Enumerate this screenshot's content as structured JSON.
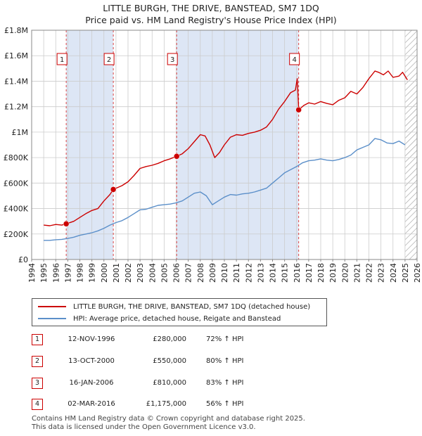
{
  "title": "LITTLE BURGH, THE DRIVE, BANSTEAD, SM7 1DQ",
  "subtitle": "Price paid vs. HM Land Registry's House Price Index (HPI)",
  "colors": {
    "property_line": "#cc0000",
    "hpi_line": "#5b8fc9",
    "shade": "#dde6f5",
    "vline": "#dd4444",
    "grid": "#cccccc"
  },
  "chart_data": {
    "type": "line",
    "xlim": [
      1994,
      2026
    ],
    "ylim": [
      0,
      1800000
    ],
    "x_ticks": [
      1994,
      1995,
      1996,
      1997,
      1998,
      1999,
      2000,
      2001,
      2002,
      2003,
      2004,
      2005,
      2006,
      2007,
      2008,
      2009,
      2010,
      2011,
      2012,
      2013,
      2014,
      2015,
      2016,
      2017,
      2018,
      2019,
      2020,
      2021,
      2022,
      2023,
      2024,
      2025,
      2026
    ],
    "y_ticks": [
      0,
      200000,
      400000,
      600000,
      800000,
      1000000,
      1200000,
      1400000,
      1600000,
      1800000
    ],
    "y_tick_labels": [
      "£0",
      "£200K",
      "£400K",
      "£600K",
      "£800K",
      "£1M",
      "£1.2M",
      "£1.4M",
      "£1.6M",
      "£1.8M"
    ],
    "shaded_ranges": [
      [
        1996.87,
        2000.78
      ],
      [
        2006.04,
        2016.17
      ]
    ],
    "hatched_after": 2025.0,
    "series": [
      {
        "name": "LITTLE BURGH, THE DRIVE, BANSTEAD, SM7 1DQ (detached house)",
        "points": [
          [
            1995.0,
            270000
          ],
          [
            1995.5,
            265000
          ],
          [
            1996.0,
            275000
          ],
          [
            1996.5,
            270000
          ],
          [
            1996.87,
            280000
          ],
          [
            1997.5,
            300000
          ],
          [
            1998.0,
            330000
          ],
          [
            1998.5,
            360000
          ],
          [
            1999.0,
            385000
          ],
          [
            1999.5,
            400000
          ],
          [
            2000.0,
            460000
          ],
          [
            2000.5,
            510000
          ],
          [
            2000.78,
            550000
          ],
          [
            2001.5,
            580000
          ],
          [
            2002.0,
            610000
          ],
          [
            2002.5,
            660000
          ],
          [
            2003.0,
            715000
          ],
          [
            2003.5,
            730000
          ],
          [
            2004.0,
            740000
          ],
          [
            2004.5,
            755000
          ],
          [
            2005.0,
            775000
          ],
          [
            2005.5,
            790000
          ],
          [
            2006.04,
            810000
          ],
          [
            2006.5,
            830000
          ],
          [
            2007.0,
            870000
          ],
          [
            2007.5,
            925000
          ],
          [
            2008.0,
            980000
          ],
          [
            2008.4,
            970000
          ],
          [
            2008.8,
            900000
          ],
          [
            2009.2,
            800000
          ],
          [
            2009.6,
            840000
          ],
          [
            2010.0,
            900000
          ],
          [
            2010.5,
            960000
          ],
          [
            2011.0,
            980000
          ],
          [
            2011.5,
            975000
          ],
          [
            2012.0,
            990000
          ],
          [
            2012.5,
            1000000
          ],
          [
            2013.0,
            1015000
          ],
          [
            2013.5,
            1040000
          ],
          [
            2014.0,
            1100000
          ],
          [
            2014.5,
            1180000
          ],
          [
            2015.0,
            1240000
          ],
          [
            2015.5,
            1310000
          ],
          [
            2015.9,
            1330000
          ],
          [
            2016.05,
            1420000
          ],
          [
            2016.17,
            1175000
          ],
          [
            2016.6,
            1210000
          ],
          [
            2017.0,
            1230000
          ],
          [
            2017.5,
            1220000
          ],
          [
            2018.0,
            1240000
          ],
          [
            2018.5,
            1225000
          ],
          [
            2019.0,
            1215000
          ],
          [
            2019.5,
            1250000
          ],
          [
            2020.0,
            1270000
          ],
          [
            2020.5,
            1320000
          ],
          [
            2021.0,
            1300000
          ],
          [
            2021.5,
            1350000
          ],
          [
            2022.0,
            1420000
          ],
          [
            2022.5,
            1480000
          ],
          [
            2022.8,
            1470000
          ],
          [
            2023.2,
            1450000
          ],
          [
            2023.6,
            1480000
          ],
          [
            2024.0,
            1430000
          ],
          [
            2024.5,
            1440000
          ],
          [
            2024.8,
            1470000
          ],
          [
            2025.2,
            1410000
          ]
        ]
      },
      {
        "name": "HPI: Average price, detached house, Reigate and Banstead",
        "points": [
          [
            1995.0,
            150000
          ],
          [
            1995.5,
            150000
          ],
          [
            1996.0,
            155000
          ],
          [
            1996.5,
            158000
          ],
          [
            1997.0,
            165000
          ],
          [
            1997.5,
            175000
          ],
          [
            1998.0,
            190000
          ],
          [
            1998.5,
            200000
          ],
          [
            1999.0,
            210000
          ],
          [
            1999.5,
            225000
          ],
          [
            2000.0,
            245000
          ],
          [
            2000.5,
            270000
          ],
          [
            2001.0,
            290000
          ],
          [
            2001.5,
            305000
          ],
          [
            2002.0,
            330000
          ],
          [
            2002.5,
            360000
          ],
          [
            2003.0,
            390000
          ],
          [
            2003.5,
            395000
          ],
          [
            2004.0,
            410000
          ],
          [
            2004.5,
            425000
          ],
          [
            2005.0,
            430000
          ],
          [
            2005.5,
            435000
          ],
          [
            2006.0,
            445000
          ],
          [
            2006.5,
            460000
          ],
          [
            2007.0,
            490000
          ],
          [
            2007.5,
            520000
          ],
          [
            2008.0,
            530000
          ],
          [
            2008.5,
            500000
          ],
          [
            2009.0,
            430000
          ],
          [
            2009.5,
            460000
          ],
          [
            2010.0,
            490000
          ],
          [
            2010.5,
            510000
          ],
          [
            2011.0,
            505000
          ],
          [
            2011.5,
            515000
          ],
          [
            2012.0,
            520000
          ],
          [
            2012.5,
            530000
          ],
          [
            2013.0,
            545000
          ],
          [
            2013.5,
            560000
          ],
          [
            2014.0,
            600000
          ],
          [
            2014.5,
            640000
          ],
          [
            2015.0,
            680000
          ],
          [
            2015.5,
            705000
          ],
          [
            2016.0,
            730000
          ],
          [
            2016.5,
            760000
          ],
          [
            2017.0,
            775000
          ],
          [
            2017.5,
            780000
          ],
          [
            2018.0,
            790000
          ],
          [
            2018.5,
            780000
          ],
          [
            2019.0,
            775000
          ],
          [
            2019.5,
            785000
          ],
          [
            2020.0,
            800000
          ],
          [
            2020.5,
            820000
          ],
          [
            2021.0,
            860000
          ],
          [
            2021.5,
            880000
          ],
          [
            2022.0,
            900000
          ],
          [
            2022.5,
            950000
          ],
          [
            2023.0,
            940000
          ],
          [
            2023.5,
            915000
          ],
          [
            2024.0,
            910000
          ],
          [
            2024.5,
            930000
          ],
          [
            2025.0,
            900000
          ]
        ]
      }
    ],
    "sales": [
      {
        "label": "1",
        "x": 1996.87,
        "price": 280000
      },
      {
        "label": "2",
        "x": 2000.78,
        "price": 550000
      },
      {
        "label": "3",
        "x": 2006.04,
        "price": 810000
      },
      {
        "label": "4",
        "x": 2016.17,
        "price": 1175000
      }
    ]
  },
  "legend": {
    "property": "LITTLE BURGH, THE DRIVE, BANSTEAD, SM7 1DQ (detached house)",
    "hpi": "HPI: Average price, detached house, Reigate and Banstead"
  },
  "transactions": [
    {
      "num": "1",
      "date": "12-NOV-1996",
      "price": "£280,000",
      "hpi": "72% ↑ HPI"
    },
    {
      "num": "2",
      "date": "13-OCT-2000",
      "price": "£550,000",
      "hpi": "80% ↑ HPI"
    },
    {
      "num": "3",
      "date": "16-JAN-2006",
      "price": "£810,000",
      "hpi": "83% ↑ HPI"
    },
    {
      "num": "4",
      "date": "02-MAR-2016",
      "price": "£1,175,000",
      "hpi": "56% ↑ HPI"
    }
  ],
  "footer": {
    "line1": "Contains HM Land Registry data © Crown copyright and database right 2025.",
    "line2": "This data is licensed under the Open Government Licence v3.0."
  }
}
